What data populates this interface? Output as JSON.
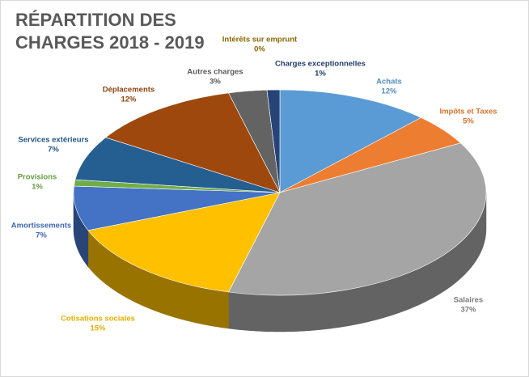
{
  "chart_data": {
    "type": "pie3d",
    "title": "RÉPARTITION DES CHARGES 2018 - 2019",
    "categories": [
      "Achats",
      "Impôts et Taxes",
      "Salaires",
      "Cotisations sociales",
      "Amortissements",
      "Provisions",
      "Services extérieurs",
      "Déplacements",
      "Autres charges",
      "Intérêts sur emprunt",
      "Charges exceptionnelles"
    ],
    "values": [
      12,
      5,
      37,
      15,
      7,
      1,
      7,
      12,
      3,
      0,
      1
    ],
    "value_labels": [
      "12%",
      "5%",
      "37%",
      "15%",
      "7%",
      "1%",
      "7%",
      "12%",
      "3%",
      "0%",
      "1%"
    ],
    "colors": [
      "#5b9bd5",
      "#ed7d31",
      "#a5a5a5",
      "#ffc000",
      "#4472c4",
      "#70ad47",
      "#255e91",
      "#9e480e",
      "#636363",
      "#997300",
      "#264478"
    ]
  }
}
